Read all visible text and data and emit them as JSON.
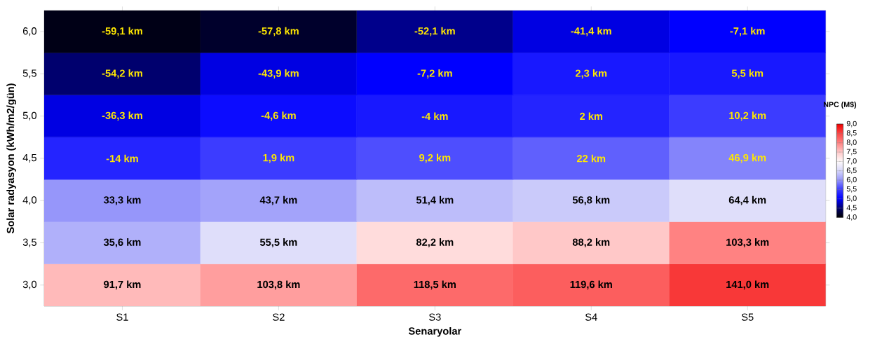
{
  "chart_data": {
    "type": "heatmap",
    "xlabel": "Senaryolar",
    "ylabel": "Solar radyasyon (kWh/m2/gün)",
    "clabel": "NPC (M$)",
    "categories": [
      "S1",
      "S2",
      "S3",
      "S4",
      "S5"
    ],
    "y_categories": [
      "6,0",
      "5,5",
      "5,0",
      "4,5",
      "4,0",
      "3,5",
      "3,0"
    ],
    "cells": [
      [
        4.1,
        4.2,
        4.6,
        4.9,
        5.0
      ],
      [
        4.5,
        4.9,
        5.0,
        5.2,
        5.2
      ],
      [
        4.9,
        5.1,
        5.2,
        5.3,
        5.5
      ],
      [
        5.3,
        5.5,
        5.6,
        5.7,
        5.9
      ],
      [
        6.0,
        6.1,
        6.3,
        6.4,
        6.6
      ],
      [
        6.2,
        6.6,
        7.3,
        7.5,
        8.0
      ],
      [
        7.6,
        7.8,
        8.2,
        8.3,
        8.6
      ]
    ],
    "annotations": [
      "-59,1 km",
      "-57,8 km",
      "-52,1 km",
      "-41,4 km",
      "-7,1 km",
      "-54,2 km",
      "-43,9 km",
      "-7,2 km",
      "2,3 km",
      "5,5 km",
      "-36,3 km",
      "-4,6 km",
      "-4 km",
      "2 km",
      "10,2 km",
      "-14 km",
      "1,9 km",
      "9,2 km",
      "22 km",
      "46,9 km",
      "33,3 km",
      "43,7 km",
      "51,4 km",
      "56,8 km",
      "64,4 km",
      "35,6 km",
      "55,5 km",
      "82,2 km",
      "88,2 km",
      "103,3 km",
      "91,7 km",
      "103,8 km",
      "118,5 km",
      "119,6 km",
      "141,0 km"
    ],
    "clim": [
      4,
      9
    ],
    "cticks": [
      {
        "value": 4,
        "label": "4,0"
      },
      {
        "value": 4.5,
        "label": "4,5"
      },
      {
        "value": 5,
        "label": "5,0"
      },
      {
        "value": 5.5,
        "label": "5,5"
      },
      {
        "value": 6,
        "label": "6,0"
      },
      {
        "value": 6.5,
        "label": "6,5"
      },
      {
        "value": 7,
        "label": "7,0"
      },
      {
        "value": 7.5,
        "label": "7,5"
      },
      {
        "value": 8,
        "label": "8,0"
      },
      {
        "value": 8.5,
        "label": "8,5"
      },
      {
        "value": 9,
        "label": "9,0"
      }
    ]
  }
}
